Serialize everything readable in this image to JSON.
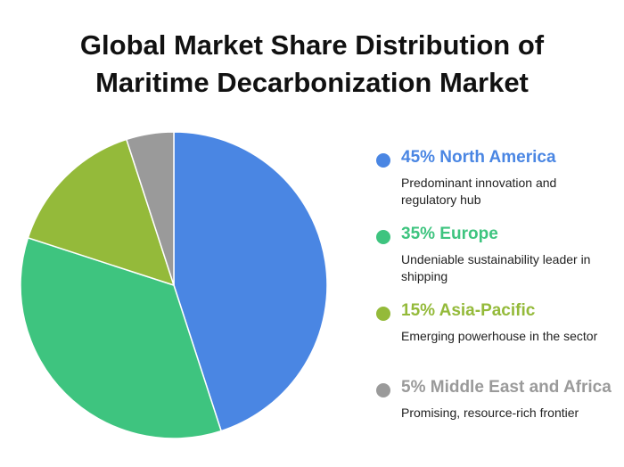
{
  "chart_data": {
    "type": "pie",
    "title": "Global Market Share Distribution of Maritime Decarbonization Market",
    "legend_position": "right",
    "slices": [
      {
        "label": "45% North America",
        "name": "North America",
        "value": 45,
        "description": "Predominant innovation and regulatory hub",
        "color": "#4a86e3"
      },
      {
        "label": "35% Europe",
        "name": "Europe",
        "value": 35,
        "description": "Undeniable sustainability leader in shipping",
        "color": "#3ec47f"
      },
      {
        "label": "15% Asia-Pacific",
        "name": "Asia-Pacific",
        "value": 15,
        "description": "Emerging powerhouse in the sector",
        "color": "#94ba3a"
      },
      {
        "label": "5% Middle East and Africa",
        "name": "Middle East and Africa",
        "value": 5,
        "description": "Promising, resource-rich frontier",
        "color": "#9a9a9a"
      }
    ]
  }
}
